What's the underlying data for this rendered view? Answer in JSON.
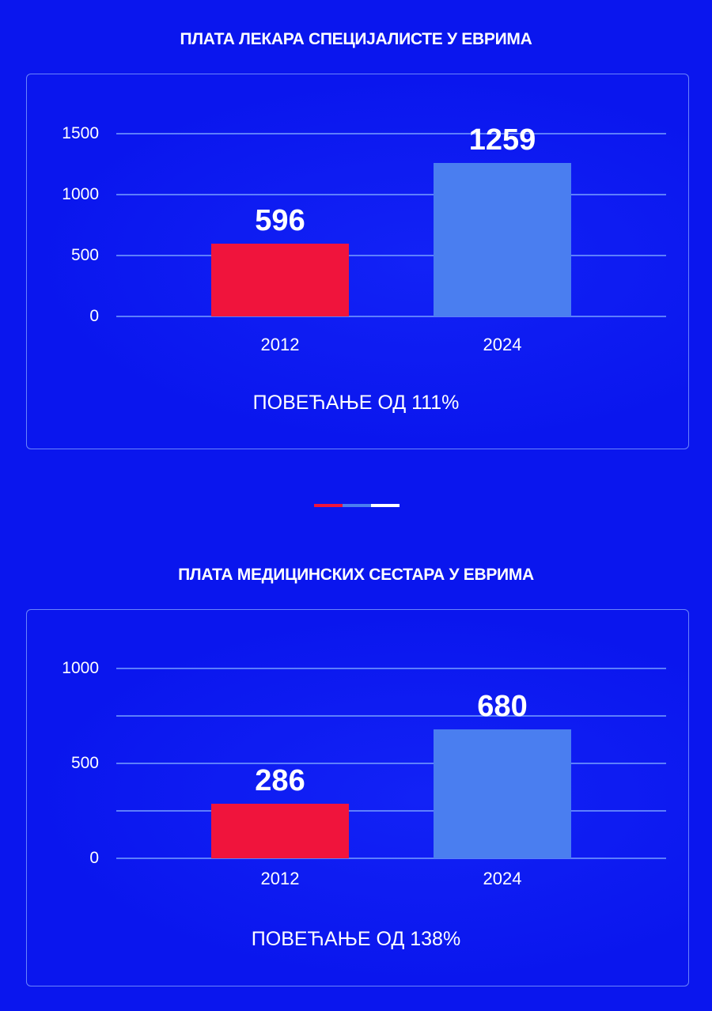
{
  "colors": {
    "background": "#0a16ee",
    "bar_2012": "#f0143c",
    "bar_2024": "#4a7ef0"
  },
  "divider_colors": [
    "#f0143c",
    "#4a7ef0",
    "#ffffff"
  ],
  "chart_data": [
    {
      "type": "bar",
      "title": "ПЛАТА ЛЕКАРА СПЕЦИЈАЛИСТЕ У ЕВРИМА",
      "categories": [
        "2012",
        "2024"
      ],
      "values": [
        596,
        1259
      ],
      "ylim": [
        0,
        1500
      ],
      "yticks": [
        0,
        500,
        1000,
        1500
      ],
      "gridlines": [
        0,
        500,
        1000,
        1500
      ],
      "note": "ПОВЕЋАЊЕ ОД 111%",
      "xlabel": "",
      "ylabel": ""
    },
    {
      "type": "bar",
      "title": "ПЛАТА МЕДИЦИНСКИХ СЕСТАРА У ЕВРИМА",
      "categories": [
        "2012",
        "2024"
      ],
      "values": [
        286,
        680
      ],
      "ylim": [
        0,
        1000
      ],
      "yticks": [
        0,
        500,
        1000
      ],
      "gridlines": [
        0,
        250,
        500,
        750,
        1000
      ],
      "note": "ПОВЕЋАЊЕ ОД 138%",
      "xlabel": "",
      "ylabel": ""
    }
  ]
}
